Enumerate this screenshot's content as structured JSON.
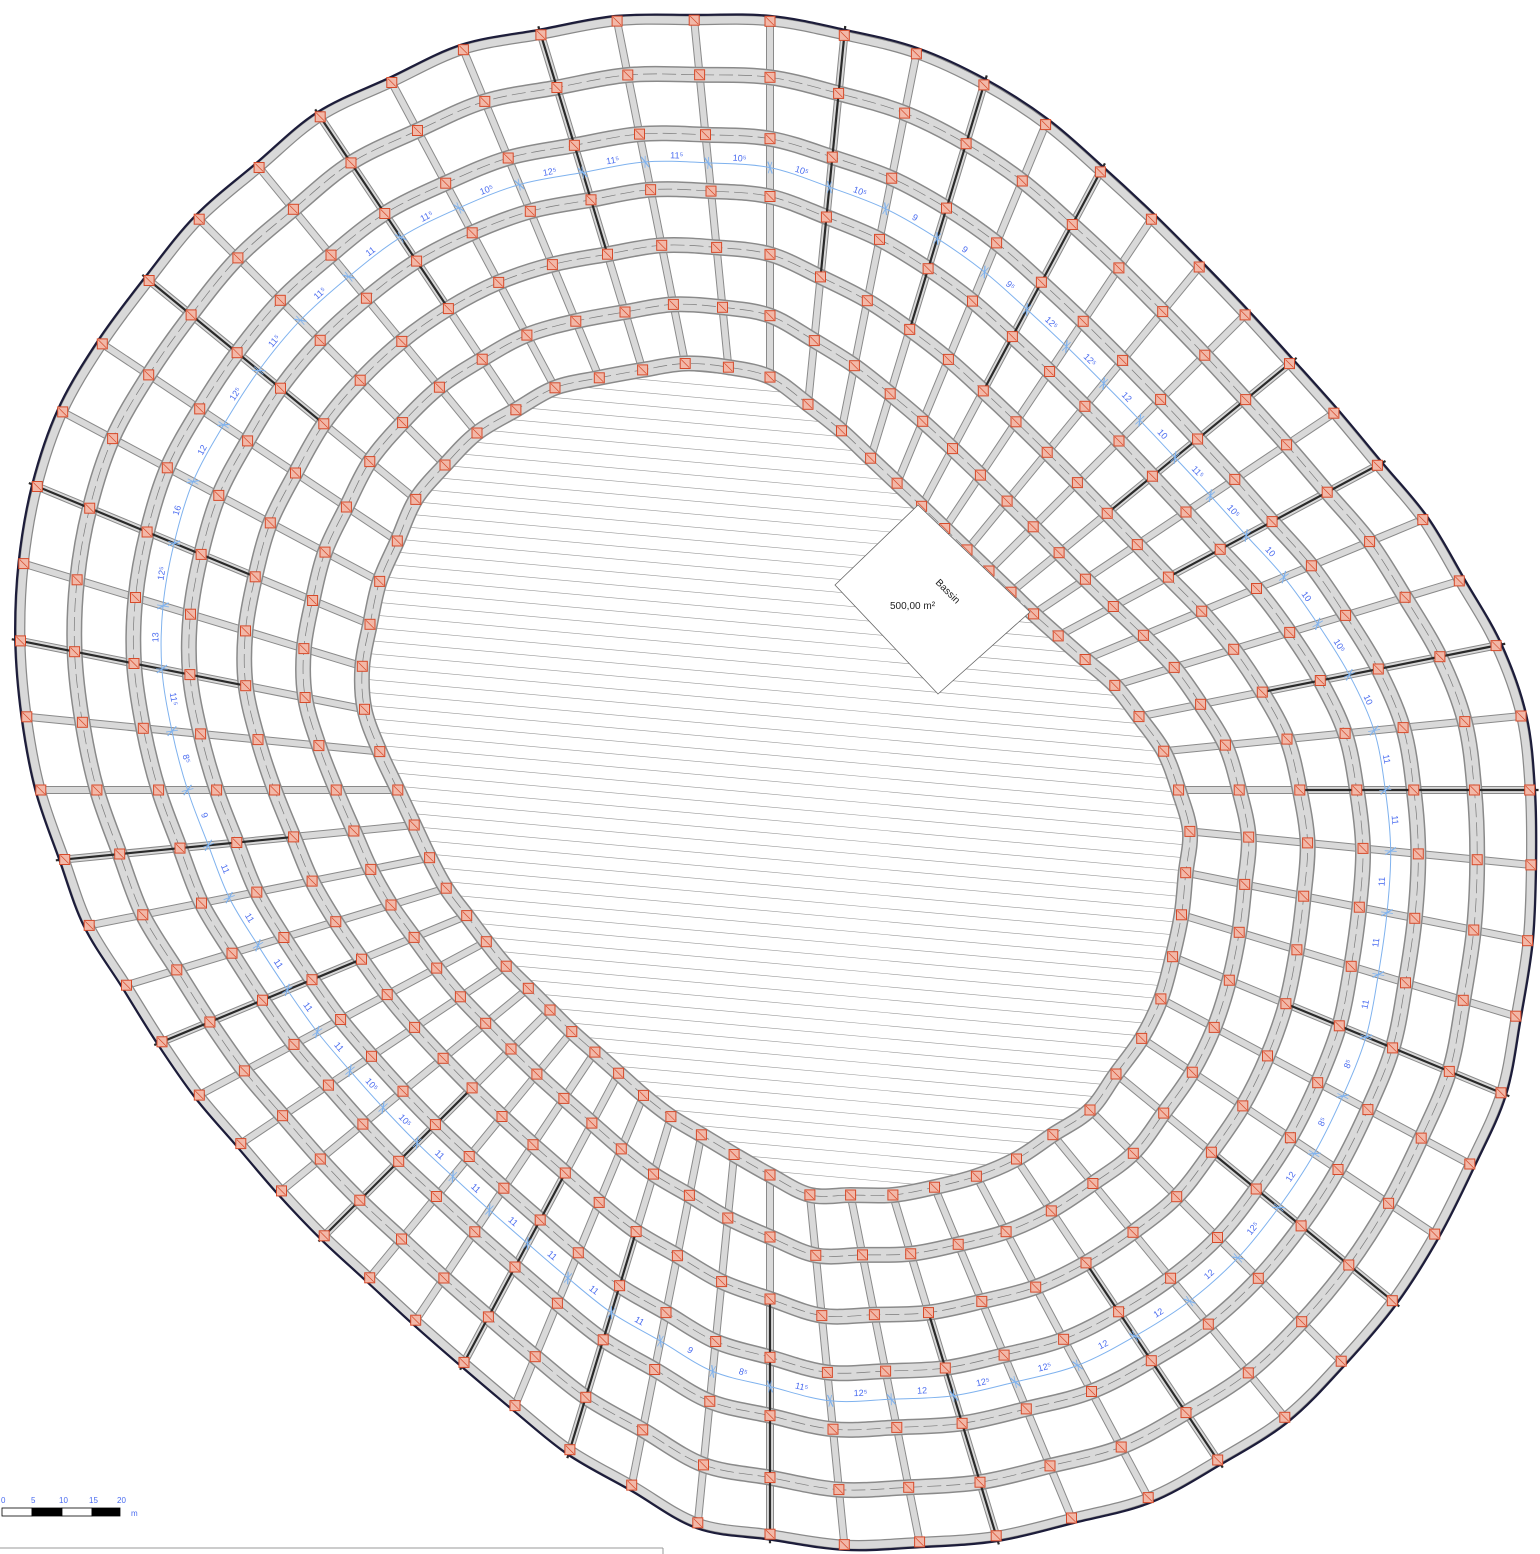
{
  "basin": {
    "name": "Bassin",
    "area": "500,00 m²"
  },
  "scale_bar": {
    "ticks": [
      "0",
      "5",
      "10",
      "15",
      "20"
    ],
    "unit": "m"
  },
  "dimensions": [
    "10⁵",
    "10⁵",
    "9",
    "9",
    "9⁵",
    "12⁵",
    "12⁵",
    "12",
    "10",
    "11⁵",
    "10⁵",
    "10",
    "10",
    "10⁵",
    "10",
    "11",
    "11",
    "11",
    "11",
    "11",
    "8⁵",
    "8⁵",
    "12",
    "12⁵",
    "12",
    "12",
    "12",
    "12⁵",
    "12⁵",
    "12",
    "12⁵",
    "11⁵",
    "8⁵",
    "9",
    "11",
    "11",
    "11",
    "11",
    "11",
    "11",
    "10⁵",
    "10⁵",
    "11",
    "11",
    "11",
    "11",
    "11",
    "9",
    "8⁵",
    "11⁵",
    "13",
    "12⁵",
    "16",
    "12",
    "12⁵",
    "11⁵",
    "11⁵",
    "11",
    "11⁵",
    "10⁵",
    "12⁵",
    "11⁵",
    "11⁵"
  ],
  "colors": {
    "beam_fill": "#d9d9d9",
    "beam_edge": "#8a8a8a",
    "node_fill": "#f2b8a8",
    "node_edge": "#d64a2a",
    "dimension_line": "#7fb2ee",
    "dimension_text": "#4a6cf0",
    "outline": "#1c1c3a",
    "support": "#2a2a2a"
  }
}
